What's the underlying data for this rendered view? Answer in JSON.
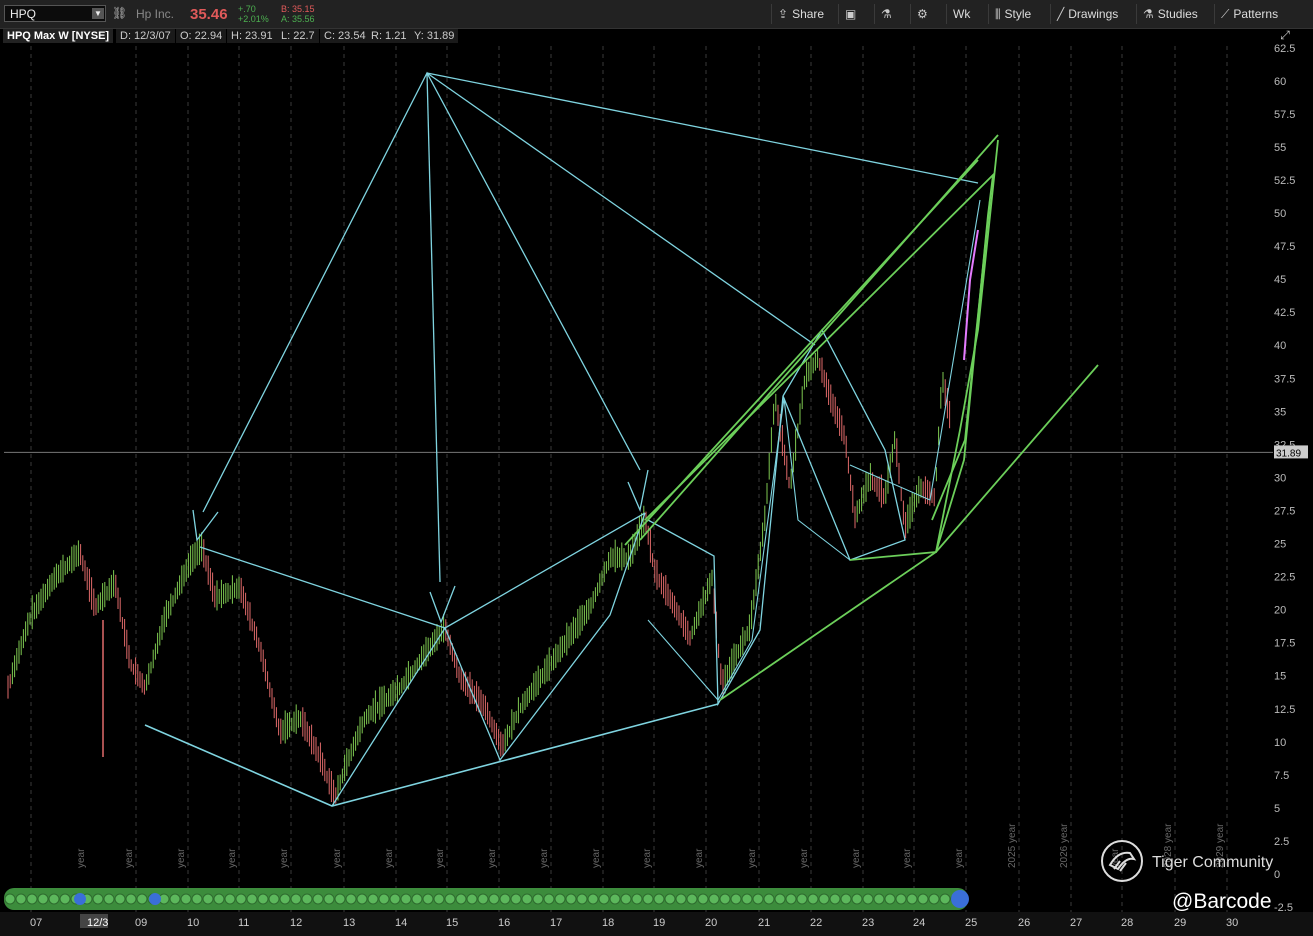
{
  "toolbar": {
    "symbol": "HPQ",
    "company": "Hp Inc.",
    "price": "35.46",
    "change": "+.70",
    "change_pct": "+2.01%",
    "bid": "B: 35.15",
    "ask": "A: 35.56",
    "buttons": [
      {
        "label": "Share",
        "icon": "share-icon"
      },
      {
        "label": "",
        "icon": "camera-icon"
      },
      {
        "label": "",
        "icon": "flask-icon"
      },
      {
        "label": "",
        "icon": "gear-icon"
      },
      {
        "label": "Wk",
        "icon": ""
      },
      {
        "label": "Style",
        "icon": "candles-icon"
      },
      {
        "label": "Drawings",
        "icon": "pencil-icon"
      },
      {
        "label": "Studies",
        "icon": "flask-icon"
      },
      {
        "label": "Patterns",
        "icon": "patterns-icon"
      }
    ]
  },
  "header": {
    "title": "HPQ Max W [NYSE]",
    "date": "D: 12/3/07",
    "open": "O: 22.94",
    "high": "H: 23.91",
    "low": "L: 22.7",
    "close": "C: 23.54",
    "range": "R: 1.21",
    "y": "Y: 31.89"
  },
  "chart_data": {
    "type": "line",
    "y_ticks": [
      "62.5",
      "60",
      "57.5",
      "55",
      "52.5",
      "50",
      "47.5",
      "45",
      "42.5",
      "40",
      "37.5",
      "35",
      "32.5",
      "30",
      "27.5",
      "25",
      "22.5",
      "20",
      "17.5",
      "15",
      "12.5",
      "10",
      "7.5",
      "5",
      "2.5",
      "0",
      "-2.5"
    ],
    "x_ticks": [
      "07",
      "12/3",
      "09",
      "10",
      "11",
      "12",
      "13",
      "14",
      "15",
      "16",
      "17",
      "18",
      "19",
      "20",
      "21",
      "22",
      "23",
      "24",
      "25",
      "26",
      "27",
      "28",
      "29",
      "30"
    ],
    "crosshair_y": "31.89",
    "year_markers": [
      "year",
      "year",
      "year",
      "year",
      "year",
      "year",
      "year",
      "year",
      "year",
      "year",
      "year",
      "year",
      "year",
      "year",
      "year",
      "year",
      "year",
      "year",
      "2025 year",
      "2026 year",
      "year",
      "2028 year",
      "2029 year"
    ],
    "colors": {
      "up": "#7ec850",
      "down": "#e06a6a",
      "cyan": "#7fd4e0",
      "green": "#6ccf5a",
      "magenta": "#e57bff"
    }
  },
  "watermark": {
    "brand": "Tiger Community",
    "handle": "@Barcode"
  }
}
